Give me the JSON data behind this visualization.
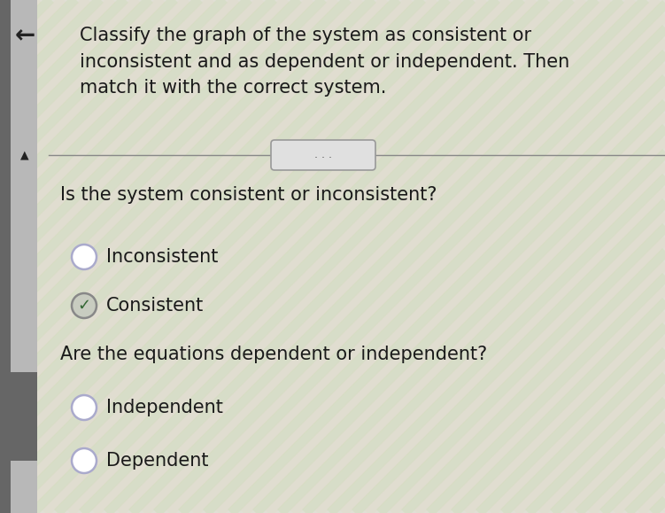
{
  "title_text": "Classify the graph of the system as consistent or\ninconsistent and as dependent or independent. Then\nmatch it with the correct system.",
  "question1": "Is the system consistent or inconsistent?",
  "option1a": "Inconsistent",
  "option1b": "Consistent",
  "question2": "Are the equations dependent or independent?",
  "option2a": "Independent",
  "option2b": "Dependent",
  "bg_color": "#e0dfd5",
  "stripe_color1": "#d4e8c8",
  "stripe_color2": "#e8e0d0",
  "text_color": "#1a1a1a",
  "title_fontsize": 15,
  "question_fontsize": 15,
  "option_fontsize": 15,
  "sidebar_dark": "#7a7a7a",
  "sidebar_light": "#b0b0b0",
  "arrow_color": "#222222",
  "radio_border_unselected": "#aaaacc",
  "radio_border_selected": "#888888",
  "radio_fill_selected": "#c8ccc0",
  "check_color": "#336633",
  "separator_color": "#888888",
  "pill_fill": "#e0e0e0",
  "pill_border": "#999999",
  "pill_dots": "#555555"
}
